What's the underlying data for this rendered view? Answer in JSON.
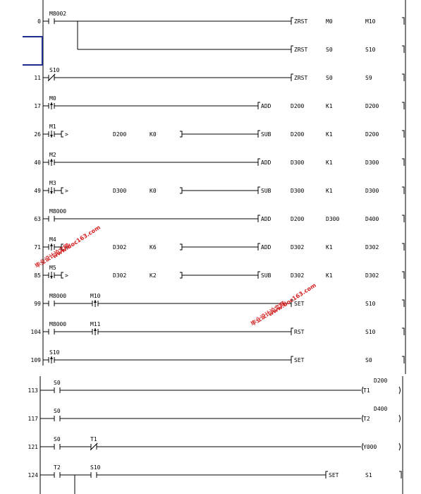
{
  "section1": {
    "rungs": [
      {
        "step": "0",
        "contacts": [
          {
            "type": "NO",
            "label": "M8002"
          }
        ],
        "outputs": [
          {
            "ins": "ZRST",
            "ops": [
              "M0",
              "M10"
            ]
          },
          {
            "ins": "ZRST",
            "ops": [
              "S0",
              "S10"
            ]
          }
        ]
      },
      {
        "step": "11",
        "contacts": [
          {
            "type": "NC",
            "label": "S10"
          }
        ],
        "outputs": [
          {
            "ins": "ZRST",
            "ops": [
              "S0",
              "S9"
            ]
          }
        ]
      },
      {
        "step": "17",
        "contacts": [
          {
            "type": "P",
            "label": "M0"
          }
        ],
        "outputs": [
          {
            "ins": "ADD",
            "ops": [
              "D200",
              "K1",
              "D200"
            ]
          }
        ]
      },
      {
        "step": "26",
        "contacts": [
          {
            "type": "F",
            "label": "M1"
          },
          {
            "type": "CMP",
            "label": ">",
            "ops": [
              "D200",
              "K0"
            ]
          }
        ],
        "outputs": [
          {
            "ins": "SUB",
            "ops": [
              "D200",
              "K1",
              "D200"
            ]
          }
        ]
      },
      {
        "step": "40",
        "contacts": [
          {
            "type": "P",
            "label": "M2"
          }
        ],
        "outputs": [
          {
            "ins": "ADD",
            "ops": [
              "D300",
              "K1",
              "D300"
            ]
          }
        ]
      },
      {
        "step": "49",
        "contacts": [
          {
            "type": "F",
            "label": "M3"
          },
          {
            "type": "CMP",
            "label": ">",
            "ops": [
              "D300",
              "K0"
            ]
          }
        ],
        "outputs": [
          {
            "ins": "SUB",
            "ops": [
              "D300",
              "K1",
              "D300"
            ]
          }
        ]
      },
      {
        "step": "63",
        "contacts": [
          {
            "type": "NO",
            "label": "M8000"
          }
        ],
        "outputs": [
          {
            "ins": "ADD",
            "ops": [
              "D200",
              "D300",
              "D400"
            ]
          }
        ]
      },
      {
        "step": "71",
        "contacts": [
          {
            "type": "P",
            "label": "M4"
          },
          {
            "type": "CMP",
            "label": "<",
            "ops": [
              "D302",
              "K6"
            ]
          }
        ],
        "outputs": [
          {
            "ins": "ADD",
            "ops": [
              "D302",
              "K1",
              "D302"
            ]
          }
        ]
      },
      {
        "step": "85",
        "contacts": [
          {
            "type": "F",
            "label": "M5"
          },
          {
            "type": "CMP",
            "label": ">",
            "ops": [
              "D302",
              "K2"
            ]
          }
        ],
        "outputs": [
          {
            "ins": "SUB",
            "ops": [
              "D302",
              "K1",
              "D302"
            ]
          }
        ]
      },
      {
        "step": "99",
        "contacts": [
          {
            "type": "NO",
            "label": "M8000"
          },
          {
            "type": "P",
            "label": "M10"
          }
        ],
        "outputs": [
          {
            "ins": "SET",
            "ops": [
              "S10"
            ]
          }
        ]
      },
      {
        "step": "104",
        "contacts": [
          {
            "type": "NO",
            "label": "M8000"
          },
          {
            "type": "P",
            "label": "M11"
          }
        ],
        "outputs": [
          {
            "ins": "RST",
            "ops": [
              "S10"
            ]
          }
        ]
      },
      {
        "step": "109",
        "contacts": [
          {
            "type": "P",
            "label": "S10"
          }
        ],
        "outputs": [
          {
            "ins": "SET",
            "ops": [
              "S0"
            ]
          }
        ]
      }
    ]
  },
  "section2": {
    "rungs": [
      {
        "step": "113",
        "contacts": [
          {
            "type": "NO",
            "label": "S0"
          }
        ],
        "coil": {
          "name": "T1",
          "preset": "D200"
        }
      },
      {
        "step": "117",
        "contacts": [
          {
            "type": "NO",
            "label": "S0"
          }
        ],
        "coil": {
          "name": "T2",
          "preset": "D400"
        }
      },
      {
        "step": "121",
        "contacts": [
          {
            "type": "NO",
            "label": "S0"
          },
          {
            "type": "NC",
            "label": "T1"
          }
        ],
        "coil": {
          "name": "Y000",
          "preset": ""
        }
      },
      {
        "step": "124",
        "contacts": [
          {
            "type": "NO",
            "label": "T2"
          },
          {
            "type": "NO",
            "label": "S10"
          }
        ],
        "outputs": [
          {
            "ins": "SET",
            "ops": [
              "S1"
            ]
          }
        ]
      }
    ]
  },
  "watermarks": [
    {
      "line1": "毕业设计论文网",
      "line2": "www.doc163.com"
    },
    {
      "line1": "毕业设计论文网",
      "line2": "www.doc163.com"
    }
  ]
}
